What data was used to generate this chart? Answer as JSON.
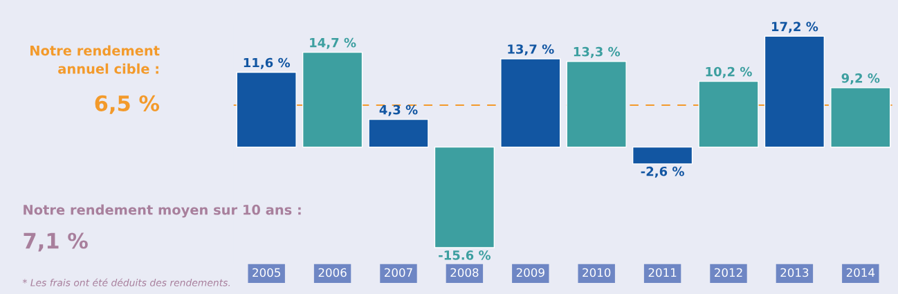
{
  "chart_data": {
    "type": "bar",
    "categories": [
      "2005",
      "2006",
      "2007",
      "2008",
      "2009",
      "2010",
      "2011",
      "2012",
      "2013",
      "2014"
    ],
    "values": [
      11.6,
      14.7,
      4.3,
      -15.6,
      13.7,
      13.3,
      -2.6,
      10.2,
      17.2,
      9.2
    ],
    "colors": [
      "#1256a2",
      "#3d9fa0",
      "#1256a2",
      "#3d9fa0",
      "#1256a2",
      "#3d9fa0",
      "#1256a2",
      "#3d9fa0",
      "#1256a2",
      "#3d9fa0"
    ],
    "value_labels": [
      "11,6 %",
      "14,7 %",
      "4,3 %",
      "-15.6 %",
      "13,7 %",
      "13,3 %",
      "-2,6 %",
      "10,2 %",
      "17,2 %",
      "9,2 %"
    ],
    "ref_lines": [
      {
        "axis": "y",
        "value": 6.5,
        "label": "6,5 %",
        "color": "#f39a2b",
        "line_style": "dashed"
      }
    ],
    "annotations": [
      "Notre rendement annuel cible :",
      "Notre rendement moyen sur 10 ans :",
      "7,1 %",
      "* Les frais ont été déduits des rendements."
    ],
    "grid": false
  }
}
